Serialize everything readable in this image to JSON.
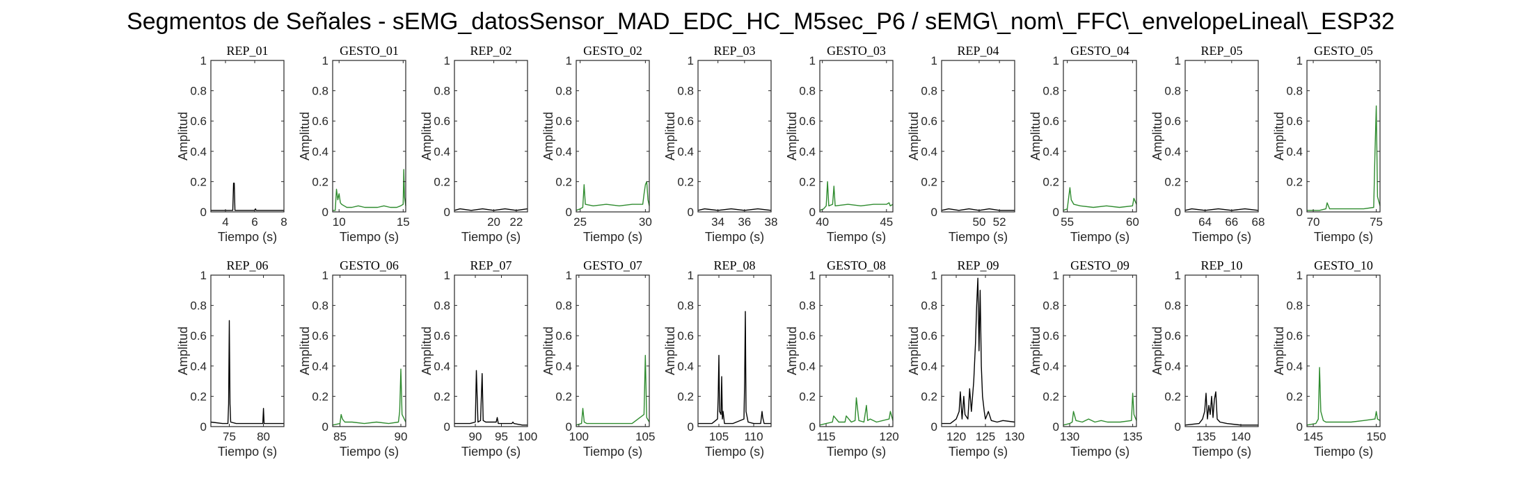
{
  "figure_title": "Segmentos de Señales - sEMG_datosSensor_MAD_EDC_HC_M5sec_P6 / sEMG\\_nom\\_FFC\\_envelopeLineal\\_ESP32",
  "colors": {
    "rep": "#000000",
    "gesto": "#2e8b2e"
  },
  "chart_data": [
    {
      "type": "line",
      "title": "REP_01",
      "xlabel": "Tiempo (s)",
      "ylabel": "Amplitud",
      "xlim": [
        3,
        8
      ],
      "ylim": [
        0,
        1
      ],
      "xticks": [
        4,
        6,
        8
      ],
      "yticks": [
        0,
        0.2,
        0.4,
        0.6,
        0.8,
        1
      ],
      "color": "rep",
      "x": [
        3,
        4.3,
        4.5,
        4.55,
        4.6,
        4.65,
        4.8,
        6,
        6.05,
        6.1,
        7,
        8
      ],
      "y": [
        0.01,
        0.01,
        0.01,
        0.19,
        0.19,
        0.01,
        0.01,
        0.01,
        0.02,
        0.01,
        0.01,
        0.01
      ]
    },
    {
      "type": "line",
      "title": "GESTO_01",
      "xlabel": "Tiempo (s)",
      "ylabel": "Amplitud",
      "xlim": [
        9.5,
        15.2
      ],
      "ylim": [
        0,
        1
      ],
      "xticks": [
        10,
        15
      ],
      "yticks": [
        0,
        0.2,
        0.4,
        0.6,
        0.8,
        1
      ],
      "color": "gesto",
      "x": [
        9.5,
        9.7,
        9.8,
        9.9,
        10,
        10.1,
        10.2,
        10.4,
        10.6,
        11,
        11.5,
        12,
        12.5,
        13,
        13.5,
        14,
        14.5,
        14.8,
        15,
        15.05,
        15.1,
        15.2
      ],
      "y": [
        0.01,
        0.01,
        0.15,
        0.08,
        0.12,
        0.06,
        0.05,
        0.04,
        0.03,
        0.03,
        0.04,
        0.03,
        0.03,
        0.03,
        0.04,
        0.03,
        0.03,
        0.04,
        0.05,
        0.28,
        0.1,
        0.04
      ]
    },
    {
      "type": "line",
      "title": "REP_02",
      "xlabel": "Tiempo (s)",
      "ylabel": "Amplitud",
      "xlim": [
        16.5,
        23
      ],
      "ylim": [
        0,
        1
      ],
      "xticks": [
        20,
        22
      ],
      "yticks": [
        0,
        0.2,
        0.4,
        0.6,
        0.8,
        1
      ],
      "color": "rep",
      "x": [
        16.5,
        17,
        18,
        19,
        20,
        21,
        22,
        23
      ],
      "y": [
        0.01,
        0.02,
        0.01,
        0.02,
        0.01,
        0.02,
        0.01,
        0.02
      ]
    },
    {
      "type": "line",
      "title": "GESTO_02",
      "xlabel": "Tiempo (s)",
      "ylabel": "Amplitud",
      "xlim": [
        24.7,
        30.3
      ],
      "ylim": [
        0,
        1
      ],
      "xticks": [
        25,
        30
      ],
      "yticks": [
        0,
        0.2,
        0.4,
        0.6,
        0.8,
        1
      ],
      "color": "gesto",
      "x": [
        24.7,
        25,
        25.2,
        25.3,
        25.4,
        26,
        27,
        28,
        29,
        29.8,
        29.9,
        30,
        30.1,
        30.2,
        30.3
      ],
      "y": [
        0.01,
        0.02,
        0.03,
        0.18,
        0.05,
        0.04,
        0.05,
        0.04,
        0.05,
        0.05,
        0.12,
        0.18,
        0.2,
        0.08,
        0.04
      ]
    },
    {
      "type": "line",
      "title": "REP_03",
      "xlabel": "Tiempo (s)",
      "ylabel": "Amplitud",
      "xlim": [
        32.5,
        38
      ],
      "ylim": [
        0,
        1
      ],
      "xticks": [
        34,
        36,
        38
      ],
      "yticks": [
        0,
        0.2,
        0.4,
        0.6,
        0.8,
        1
      ],
      "color": "rep",
      "x": [
        32.5,
        33,
        34,
        35,
        36,
        37,
        38
      ],
      "y": [
        0.01,
        0.02,
        0.01,
        0.02,
        0.01,
        0.02,
        0.01
      ]
    },
    {
      "type": "line",
      "title": "GESTO_03",
      "xlabel": "Tiempo (s)",
      "ylabel": "Amplitud",
      "xlim": [
        39.8,
        45.5
      ],
      "ylim": [
        0,
        1
      ],
      "xticks": [
        40,
        45
      ],
      "yticks": [
        0,
        0.2,
        0.4,
        0.6,
        0.8,
        1
      ],
      "color": "gesto",
      "x": [
        39.8,
        40.1,
        40.3,
        40.4,
        40.5,
        40.8,
        40.9,
        41,
        42,
        43,
        44,
        45,
        45.2,
        45.3,
        45.5
      ],
      "y": [
        0.01,
        0.02,
        0.04,
        0.2,
        0.04,
        0.05,
        0.17,
        0.04,
        0.05,
        0.04,
        0.05,
        0.05,
        0.06,
        0.04,
        0.05
      ]
    },
    {
      "type": "line",
      "title": "REP_04",
      "xlabel": "Tiempo (s)",
      "ylabel": "Amplitud",
      "xlim": [
        46.3,
        53.5
      ],
      "ylim": [
        0,
        1
      ],
      "xticks": [
        50,
        52
      ],
      "yticks": [
        0,
        0.2,
        0.4,
        0.6,
        0.8,
        1
      ],
      "color": "rep",
      "x": [
        46.3,
        47,
        48,
        49,
        50,
        51,
        52,
        53.5
      ],
      "y": [
        0.01,
        0.02,
        0.01,
        0.02,
        0.01,
        0.02,
        0.01,
        0.01
      ]
    },
    {
      "type": "line",
      "title": "GESTO_04",
      "xlabel": "Tiempo (s)",
      "ylabel": "Amplitud",
      "xlim": [
        54.7,
        60.3
      ],
      "ylim": [
        0,
        1
      ],
      "xticks": [
        55,
        60
      ],
      "yticks": [
        0,
        0.2,
        0.4,
        0.6,
        0.8,
        1
      ],
      "color": "gesto",
      "x": [
        54.7,
        55,
        55.2,
        55.3,
        55.5,
        56,
        57,
        58,
        59,
        60,
        60.1,
        60.3
      ],
      "y": [
        0.01,
        0.02,
        0.16,
        0.08,
        0.05,
        0.04,
        0.03,
        0.04,
        0.03,
        0.04,
        0.09,
        0.05
      ]
    },
    {
      "type": "line",
      "title": "REP_05",
      "xlabel": "Tiempo (s)",
      "ylabel": "Amplitud",
      "xlim": [
        62.5,
        68
      ],
      "ylim": [
        0,
        1
      ],
      "xticks": [
        64,
        66,
        68
      ],
      "yticks": [
        0,
        0.2,
        0.4,
        0.6,
        0.8,
        1
      ],
      "color": "rep",
      "x": [
        62.5,
        63,
        64,
        65,
        66,
        67,
        68
      ],
      "y": [
        0.01,
        0.02,
        0.01,
        0.02,
        0.01,
        0.02,
        0.01
      ]
    },
    {
      "type": "line",
      "title": "GESTO_05",
      "xlabel": "Tiempo (s)",
      "ylabel": "Amplitud",
      "xlim": [
        69.5,
        75.3
      ],
      "ylim": [
        0,
        1
      ],
      "xticks": [
        70,
        75
      ],
      "yticks": [
        0,
        0.2,
        0.4,
        0.6,
        0.8,
        1
      ],
      "color": "gesto",
      "x": [
        69.5,
        70.5,
        71,
        71.1,
        71.3,
        72,
        73,
        74,
        74.8,
        74.9,
        75,
        75.1,
        75.3
      ],
      "y": [
        0.01,
        0.01,
        0.02,
        0.06,
        0.02,
        0.02,
        0.02,
        0.02,
        0.03,
        0.4,
        0.7,
        0.1,
        0.04
      ]
    },
    {
      "type": "line",
      "title": "REP_06",
      "xlabel": "Tiempo (s)",
      "ylabel": "Amplitud",
      "xlim": [
        72.3,
        83
      ],
      "ylim": [
        0,
        1
      ],
      "xticks": [
        75,
        80
      ],
      "yticks": [
        0,
        0.2,
        0.4,
        0.6,
        0.8,
        1
      ],
      "color": "rep",
      "x": [
        72.3,
        74,
        74.8,
        74.9,
        75,
        75.1,
        75.2,
        76,
        78,
        79.9,
        80,
        80.1,
        82,
        83
      ],
      "y": [
        0.03,
        0.02,
        0.02,
        0.15,
        0.7,
        0.15,
        0.03,
        0.02,
        0.02,
        0.02,
        0.12,
        0.02,
        0.02,
        0.02
      ]
    },
    {
      "type": "line",
      "title": "GESTO_06",
      "xlabel": "Tiempo (s)",
      "ylabel": "Amplitud",
      "xlim": [
        84.4,
        90.4
      ],
      "ylim": [
        0,
        1
      ],
      "xticks": [
        85,
        90
      ],
      "yticks": [
        0,
        0.2,
        0.4,
        0.6,
        0.8,
        1
      ],
      "color": "gesto",
      "x": [
        84.4,
        85,
        85.1,
        85.2,
        85.4,
        86,
        87,
        88,
        89,
        89.8,
        89.9,
        90,
        90.1,
        90.4
      ],
      "y": [
        0.01,
        0.02,
        0.08,
        0.05,
        0.03,
        0.03,
        0.02,
        0.03,
        0.02,
        0.03,
        0.1,
        0.38,
        0.08,
        0.03
      ]
    },
    {
      "type": "line",
      "title": "REP_07",
      "xlabel": "Tiempo (s)",
      "ylabel": "Amplitud",
      "xlim": [
        86,
        100
      ],
      "ylim": [
        0,
        1
      ],
      "xticks": [
        90,
        95,
        100
      ],
      "yticks": [
        0,
        0.2,
        0.4,
        0.6,
        0.8,
        1
      ],
      "color": "rep",
      "x": [
        86,
        89,
        90,
        90.2,
        90.5,
        91,
        91.3,
        91.5,
        92,
        94,
        94.2,
        94.4,
        96,
        97,
        97.2,
        97.4,
        99,
        100
      ],
      "y": [
        0.02,
        0.02,
        0.03,
        0.37,
        0.03,
        0.04,
        0.35,
        0.04,
        0.03,
        0.03,
        0.06,
        0.02,
        0.02,
        0.02,
        0.03,
        0.02,
        0.01,
        0.01
      ]
    },
    {
      "type": "line",
      "title": "GESTO_07",
      "xlabel": "Tiempo (s)",
      "ylabel": "Amplitud",
      "xlim": [
        99.8,
        105.3
      ],
      "ylim": [
        0,
        1
      ],
      "xticks": [
        100,
        105
      ],
      "yticks": [
        0,
        0.2,
        0.4,
        0.6,
        0.8,
        1
      ],
      "color": "gesto",
      "x": [
        99.8,
        100.2,
        100.3,
        100.4,
        100.6,
        101,
        102,
        103,
        104,
        104.9,
        105,
        105.1,
        105.3
      ],
      "y": [
        0.01,
        0.02,
        0.12,
        0.03,
        0.02,
        0.02,
        0.02,
        0.02,
        0.02,
        0.08,
        0.47,
        0.06,
        0.03
      ]
    },
    {
      "type": "line",
      "title": "REP_08",
      "xlabel": "Tiempo (s)",
      "ylabel": "Amplitud",
      "xlim": [
        102,
        112.5
      ],
      "ylim": [
        0,
        1
      ],
      "xticks": [
        105,
        110
      ],
      "yticks": [
        0,
        0.2,
        0.4,
        0.6,
        0.8,
        1
      ],
      "color": "rep",
      "x": [
        102,
        104,
        104.8,
        104.9,
        105,
        105.1,
        105.3,
        105.4,
        105.5,
        105.6,
        105.8,
        107,
        108.6,
        108.7,
        108.8,
        108.9,
        109.2,
        110,
        111,
        111.2,
        111.3,
        111.5,
        112.5
      ],
      "y": [
        0.02,
        0.02,
        0.05,
        0.2,
        0.47,
        0.1,
        0.08,
        0.33,
        0.05,
        0.1,
        0.02,
        0.02,
        0.05,
        0.3,
        0.76,
        0.1,
        0.03,
        0.02,
        0.02,
        0.1,
        0.06,
        0.02,
        0.02
      ]
    },
    {
      "type": "line",
      "title": "GESTO_08",
      "xlabel": "Tiempo (s)",
      "ylabel": "Amplitud",
      "xlim": [
        114.5,
        120.3
      ],
      "ylim": [
        0,
        1
      ],
      "xticks": [
        115,
        120
      ],
      "yticks": [
        0,
        0.2,
        0.4,
        0.6,
        0.8,
        1
      ],
      "color": "gesto",
      "x": [
        114.5,
        115,
        115.5,
        115.6,
        116,
        116.5,
        116.6,
        117,
        117.3,
        117.4,
        117.6,
        118,
        118.2,
        118.3,
        118.5,
        119,
        119.5,
        120,
        120.1,
        120.3
      ],
      "y": [
        0.01,
        0.02,
        0.03,
        0.07,
        0.03,
        0.03,
        0.07,
        0.03,
        0.04,
        0.19,
        0.04,
        0.03,
        0.14,
        0.04,
        0.05,
        0.03,
        0.04,
        0.05,
        0.1,
        0.04
      ]
    },
    {
      "type": "line",
      "title": "REP_09",
      "xlabel": "Tiempo (s)",
      "ylabel": "Amplitud",
      "xlim": [
        117.5,
        130
      ],
      "ylim": [
        0,
        1
      ],
      "xticks": [
        120,
        125,
        130
      ],
      "yticks": [
        0,
        0.2,
        0.4,
        0.6,
        0.8,
        1
      ],
      "color": "rep",
      "x": [
        117.5,
        119,
        120,
        120.5,
        120.7,
        121,
        121.3,
        121.5,
        122,
        122.3,
        122.6,
        123,
        123.3,
        123.5,
        123.7,
        123.9,
        124.1,
        124.3,
        124.5,
        124.8,
        125,
        125.5,
        126,
        127,
        128,
        130
      ],
      "y": [
        0.02,
        0.02,
        0.05,
        0.1,
        0.23,
        0.05,
        0.2,
        0.08,
        0.05,
        0.25,
        0.1,
        0.3,
        0.55,
        0.8,
        0.98,
        0.5,
        0.9,
        0.4,
        0.2,
        0.1,
        0.05,
        0.1,
        0.04,
        0.03,
        0.04,
        0.03
      ]
    },
    {
      "type": "line",
      "title": "GESTO_09",
      "xlabel": "Tiempo (s)",
      "ylabel": "Amplitud",
      "xlim": [
        129.5,
        135.3
      ],
      "ylim": [
        0,
        1
      ],
      "xticks": [
        130,
        135
      ],
      "yticks": [
        0,
        0.2,
        0.4,
        0.6,
        0.8,
        1
      ],
      "color": "gesto",
      "x": [
        129.5,
        130,
        130.2,
        130.3,
        130.5,
        131,
        131.5,
        132,
        132.5,
        133,
        134,
        134.9,
        135,
        135.1,
        135.3
      ],
      "y": [
        0.01,
        0.02,
        0.03,
        0.1,
        0.04,
        0.03,
        0.05,
        0.03,
        0.04,
        0.03,
        0.03,
        0.04,
        0.22,
        0.08,
        0.04
      ]
    },
    {
      "type": "line",
      "title": "REP_10",
      "xlabel": "Tiempo (s)",
      "ylabel": "Amplitud",
      "xlim": [
        132,
        142.5
      ],
      "ylim": [
        0,
        1
      ],
      "xticks": [
        135,
        140
      ],
      "yticks": [
        0,
        0.2,
        0.4,
        0.6,
        0.8,
        1
      ],
      "color": "rep",
      "x": [
        132,
        134,
        134.5,
        134.8,
        135,
        135.2,
        135.4,
        135.6,
        135.8,
        136,
        136.2,
        136.4,
        136.6,
        137,
        138,
        140,
        142.5
      ],
      "y": [
        0.01,
        0.02,
        0.05,
        0.1,
        0.22,
        0.05,
        0.14,
        0.08,
        0.2,
        0.06,
        0.18,
        0.23,
        0.05,
        0.03,
        0.02,
        0.01,
        0.01
      ]
    },
    {
      "type": "line",
      "title": "GESTO_10",
      "xlabel": "Tiempo (s)",
      "ylabel": "Amplitud",
      "xlim": [
        144.5,
        150.3
      ],
      "ylim": [
        0,
        1
      ],
      "xticks": [
        145,
        150
      ],
      "yticks": [
        0,
        0.2,
        0.4,
        0.6,
        0.8,
        1
      ],
      "color": "gesto",
      "x": [
        144.5,
        145.2,
        145.4,
        145.5,
        145.6,
        145.8,
        146,
        147,
        148,
        149,
        149.9,
        150,
        150.1,
        150.3
      ],
      "y": [
        0.01,
        0.02,
        0.05,
        0.39,
        0.1,
        0.04,
        0.03,
        0.03,
        0.03,
        0.04,
        0.05,
        0.1,
        0.05,
        0.04
      ]
    }
  ]
}
